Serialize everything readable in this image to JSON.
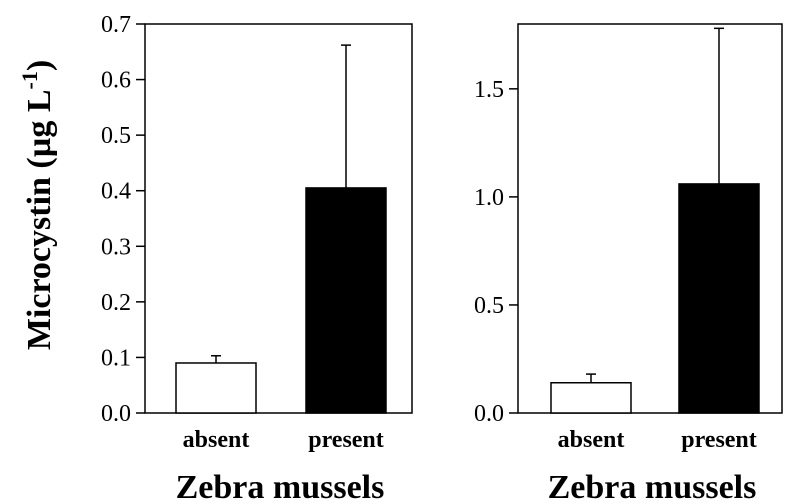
{
  "chart_data": [
    {
      "type": "bar",
      "categories": [
        "absent",
        "present"
      ],
      "values": [
        0.09,
        0.405
      ],
      "error_upper": [
        0.103,
        0.662
      ],
      "bar_colors": [
        "#ffffff",
        "#000000"
      ],
      "ylim": [
        0.0,
        0.7
      ],
      "yticks": [
        0.0,
        0.1,
        0.2,
        0.3,
        0.4,
        0.5,
        0.6,
        0.7
      ],
      "ytick_labels": [
        "0.0",
        "0.1",
        "0.2",
        "0.3",
        "0.4",
        "0.5",
        "0.6",
        "0.7"
      ],
      "ylabel_main": "Microcystin (µg L",
      "ylabel_sup": "-1",
      "ylabel_close": ")",
      "xlabel": "Zebra mussels",
      "grid": false
    },
    {
      "type": "bar",
      "categories": [
        "absent",
        "present"
      ],
      "values": [
        0.14,
        1.06
      ],
      "error_upper": [
        0.18,
        1.78
      ],
      "bar_colors": [
        "#ffffff",
        "#000000"
      ],
      "ylim": [
        0.0,
        1.8
      ],
      "yticks": [
        0.0,
        0.5,
        1.0,
        1.5
      ],
      "ytick_labels": [
        "0.0",
        "0.5",
        "1.0",
        "1.5"
      ],
      "xlabel": "Zebra mussels",
      "grid": false
    }
  ]
}
